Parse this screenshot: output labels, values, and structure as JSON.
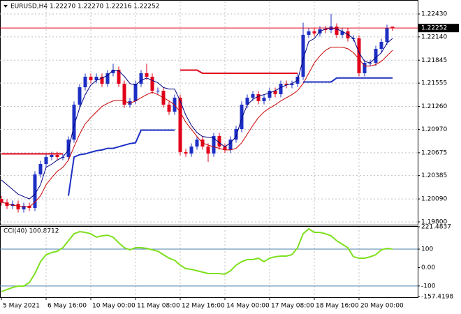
{
  "chart_data": [
    {
      "type": "candlestick",
      "title": "EURUSD,H4  1.22270 1.22270 1.22216 1.22252",
      "categories": [
        "5 May 2021",
        null,
        null,
        null,
        null,
        null,
        null,
        null,
        "6 May 16:00",
        null,
        null,
        null,
        null,
        null,
        null,
        null,
        "10 May 00:00",
        null,
        null,
        null,
        null,
        null,
        null,
        null,
        "11 May 08:00",
        null,
        null,
        null,
        null,
        null,
        null,
        null,
        "12 May 16:00",
        null,
        null,
        null,
        null,
        null,
        null,
        null,
        "14 May 00:00",
        null,
        null,
        null,
        null,
        null,
        null,
        null,
        "17 May 08:00",
        null,
        null,
        null,
        null,
        null,
        null,
        null,
        "18 May 16:00",
        null,
        null,
        null,
        null,
        null,
        null,
        null,
        "20 May 00:00",
        null,
        null,
        null,
        null,
        null,
        null
      ],
      "candles": {
        "open": [
          1.2009,
          1.20046,
          1.20002,
          1.20029,
          1.19958,
          1.20002,
          1.19976,
          1.204,
          1.20532,
          1.2062,
          1.20647,
          1.2062,
          1.2062,
          1.20841,
          1.21283,
          1.21503,
          1.21636,
          1.21592,
          1.21636,
          1.21547,
          1.2168,
          1.21724,
          1.21547,
          1.21283,
          1.21327,
          1.21547,
          1.2168,
          1.21636,
          1.21459,
          1.21459,
          1.21283,
          1.21194,
          1.21371,
          1.20682,
          1.20664,
          1.20753,
          1.20841,
          1.20753,
          1.20664,
          1.20885,
          1.20753,
          1.20709,
          1.20841,
          1.20973,
          1.21283,
          1.21371,
          1.21415,
          1.21327,
          1.21371,
          1.21459,
          1.21415,
          1.21547,
          1.2153,
          1.21547,
          1.21636,
          1.22166,
          1.2221,
          1.22183,
          1.22236,
          1.22227,
          1.22271,
          1.22166,
          1.2221,
          1.22121,
          1.22121,
          1.2168,
          1.21812,
          1.21812,
          1.21989,
          1.22077,
          1.2227
        ],
        "high": [
          1.2013,
          1.20086,
          1.20069,
          1.20069,
          1.20042,
          1.20042,
          1.2044,
          1.20572,
          1.2066,
          1.20687,
          1.20687,
          1.2066,
          1.20881,
          1.21323,
          1.21543,
          1.21676,
          1.21676,
          1.21676,
          1.21676,
          1.2172,
          1.218,
          1.21764,
          1.21587,
          1.21367,
          1.21587,
          1.2172,
          1.218,
          1.21676,
          1.21499,
          1.21499,
          1.21323,
          1.21411,
          1.21411,
          1.20722,
          1.20793,
          1.20881,
          1.20881,
          1.20793,
          1.20925,
          1.20925,
          1.20793,
          1.20881,
          1.21013,
          1.21323,
          1.21411,
          1.21455,
          1.21455,
          1.21411,
          1.21499,
          1.21499,
          1.21587,
          1.21587,
          1.21587,
          1.21676,
          1.2232,
          1.2225,
          1.2225,
          1.22276,
          1.22276,
          1.2243,
          1.22311,
          1.2225,
          1.2225,
          1.22161,
          1.22161,
          1.21852,
          1.21852,
          1.22029,
          1.22117,
          1.22294,
          1.2227
        ],
        "low": [
          1.20006,
          1.19962,
          1.19962,
          1.19918,
          1.19918,
          1.19936,
          1.19936,
          1.2036,
          1.20492,
          1.2058,
          1.2058,
          1.2058,
          1.2058,
          1.20801,
          1.21243,
          1.21463,
          1.21552,
          1.21552,
          1.21507,
          1.21507,
          1.2164,
          1.21507,
          1.21243,
          1.21243,
          1.21287,
          1.21507,
          1.21596,
          1.21419,
          1.21419,
          1.21243,
          1.21154,
          1.21154,
          1.20642,
          1.20624,
          1.20624,
          1.20713,
          1.20713,
          1.2056,
          1.20624,
          1.20713,
          1.20669,
          1.20669,
          1.20801,
          1.20933,
          1.21243,
          1.21331,
          1.21287,
          1.21287,
          1.21331,
          1.21375,
          1.21375,
          1.2149,
          1.2149,
          1.21507,
          1.21596,
          1.22126,
          1.22143,
          1.22143,
          1.22187,
          1.22187,
          1.22126,
          1.22126,
          1.22081,
          1.22081,
          1.2164,
          1.2164,
          1.21772,
          1.21772,
          1.21949,
          1.22037,
          1.22216
        ],
        "close": [
          1.20046,
          1.20002,
          1.20029,
          1.19958,
          1.20002,
          1.19976,
          1.204,
          1.20532,
          1.2062,
          1.20647,
          1.2062,
          1.2062,
          1.20841,
          1.21283,
          1.21503,
          1.21636,
          1.21592,
          1.21636,
          1.21547,
          1.2168,
          1.21724,
          1.21547,
          1.21283,
          1.21327,
          1.21547,
          1.2168,
          1.21636,
          1.21459,
          1.21459,
          1.21283,
          1.21194,
          1.21371,
          1.20682,
          1.20664,
          1.20753,
          1.20841,
          1.20753,
          1.20664,
          1.20885,
          1.20753,
          1.20709,
          1.20841,
          1.20973,
          1.21283,
          1.21371,
          1.21415,
          1.21327,
          1.21371,
          1.21459,
          1.21415,
          1.21547,
          1.2153,
          1.21547,
          1.21636,
          1.22166,
          1.2221,
          1.22183,
          1.22236,
          1.22227,
          1.22271,
          1.22166,
          1.2221,
          1.22121,
          1.22121,
          1.2168,
          1.21812,
          1.21812,
          1.21989,
          1.22077,
          1.22254,
          1.22252
        ]
      },
      "up_color": "#1c2fc4",
      "down_color": "#e0001a",
      "series": [
        {
          "color": "#000080",
          "width": 1,
          "values": [
            1.2033,
            1.2027,
            1.2021,
            1.2015,
            1.2012,
            1.2009,
            1.2015,
            1.2027,
            1.2049,
            1.2053,
            1.2058,
            1.2062,
            1.2071,
            1.2102,
            1.2124,
            1.2141,
            1.2153,
            1.2159,
            1.2162,
            1.2165,
            1.2172,
            1.2171,
            1.2164,
            1.2155,
            1.2153,
            1.2159,
            1.2162,
            1.2159,
            1.2156,
            1.215,
            1.2148,
            1.2148,
            1.2133,
            1.2115,
            1.2102,
            1.2093,
            1.2088,
            1.2087,
            1.2086,
            1.208,
            1.2075,
            1.208,
            1.2088,
            1.2111,
            1.2128,
            1.2135,
            1.2139,
            1.2141,
            1.2143,
            1.2146,
            1.215,
            1.2153,
            1.2155,
            1.2159,
            1.2186,
            1.2208,
            1.2212,
            1.2221,
            1.2224,
            1.2225,
            1.2224,
            1.2221,
            1.2217,
            1.2212,
            1.2194,
            1.2183,
            1.2181,
            1.2188,
            1.2194,
            1.2206,
            1.2212
          ]
        },
        {
          "color": "#cc0000",
          "width": 1,
          "values": [
            1.2005,
            1.2003,
            1.2001,
            1.2,
            1.1999,
            1.1999,
            1.2005,
            1.2013,
            1.2027,
            1.2036,
            1.2044,
            1.2049,
            1.2058,
            1.2075,
            1.2091,
            1.2104,
            1.2112,
            1.2119,
            1.2126,
            1.213,
            1.2133,
            1.2134,
            1.2133,
            1.213,
            1.2133,
            1.2137,
            1.2141,
            1.2144,
            1.2141,
            1.2137,
            1.2133,
            1.2128,
            1.2119,
            1.2106,
            1.2097,
            1.2088,
            1.208,
            1.2077,
            1.2075,
            1.2073,
            1.2071,
            1.2071,
            1.2073,
            1.208,
            1.2091,
            1.2102,
            1.2112,
            1.2119,
            1.2124,
            1.2128,
            1.2133,
            1.2137,
            1.2141,
            1.2146,
            1.2155,
            1.2168,
            1.2181,
            1.219,
            1.2197,
            1.2201,
            1.2201,
            1.2201,
            1.2199,
            1.2194,
            1.2186,
            1.2177,
            1.2177,
            1.2179,
            1.2183,
            1.219,
            1.2197
          ]
        },
        {
          "color": "#1c2fc4",
          "width": 2,
          "values": [
            null,
            null,
            null,
            null,
            null,
            null,
            null,
            null,
            null,
            null,
            null,
            null,
            1.2013,
            1.2062,
            1.2065,
            1.2066,
            1.2068,
            1.207,
            1.2071,
            1.2073,
            1.2073,
            1.2075,
            1.2077,
            1.2079,
            1.208,
            1.2096,
            1.2096,
            1.2096,
            1.2096,
            1.2096,
            1.2096,
            1.2096,
            null,
            null,
            null,
            null,
            null,
            null,
            null,
            null,
            null,
            null,
            null,
            null,
            null,
            null,
            null,
            null,
            null,
            null,
            null,
            null,
            null,
            null,
            1.2157,
            1.2157,
            1.2157,
            1.2157,
            1.2157,
            1.2157,
            1.2162,
            1.2162,
            1.2162,
            1.2162,
            1.2162,
            1.2162,
            1.2162,
            1.2162,
            1.2162,
            1.2162,
            1.2162
          ]
        },
        {
          "color": "#e0001a",
          "width": 2,
          "values": [
            1.2066,
            1.2066,
            1.2066,
            1.2066,
            1.2066,
            1.2066,
            1.2066,
            1.2066,
            1.2066,
            1.2066,
            1.2066,
            1.2066,
            null,
            null,
            null,
            null,
            null,
            null,
            null,
            null,
            null,
            null,
            null,
            null,
            null,
            null,
            null,
            null,
            null,
            null,
            null,
            null,
            1.2172,
            1.2172,
            1.2172,
            1.2172,
            1.2168,
            1.2168,
            1.2168,
            1.2168,
            1.2168,
            1.2168,
            1.2168,
            1.2168,
            1.2168,
            1.2168,
            1.2168,
            1.2168,
            1.2168,
            1.2168,
            1.2168,
            1.2168,
            1.2168,
            1.2168,
            null,
            null,
            null,
            null,
            null,
            null,
            null,
            null,
            null,
            null,
            null,
            null,
            null,
            null,
            null,
            null,
            null
          ]
        }
      ],
      "current_price": 1.22252,
      "current_color": "#e0001a",
      "ylim": [
        1.19782,
        1.22589
      ],
      "yticks": [
        {
          "value": 1.2243,
          "label": "1.22430"
        },
        {
          "value": 1.2214,
          "label": "1.22140"
        },
        1.21845,
        1.21555,
        {
          "value": 1.2126,
          "label": "1.21260"
        },
        {
          "value": 1.2097,
          "label": "1.20970"
        },
        1.20675,
        1.20385,
        {
          "value": 1.2009,
          "label": "1.20090"
        },
        {
          "value": 1.198,
          "label": "1.19800"
        }
      ],
      "grid": true
    },
    {
      "type": "line",
      "title": "CCI(40) 100.8712",
      "series": [
        {
          "color": "#7ee01e",
          "width": 2,
          "values": [
            -130.9,
            -119.5,
            -108.2,
            -100.6,
            -100.6,
            -81.6,
            -32.4,
            32.0,
            69.9,
            81.3,
            88.8,
            107.8,
            145.7,
            183.6,
            194.9,
            191.2,
            183.6,
            164.7,
            172.2,
            176.0,
            164.7,
            134.3,
            107.8,
            96.4,
            107.8,
            107.8,
            104.0,
            96.4,
            88.8,
            69.9,
            51.0,
            39.6,
            13.1,
            -5.9,
            -9.7,
            -17.2,
            -24.8,
            -32.4,
            -32.4,
            -32.4,
            -36.2,
            -17.2,
            13.1,
            32.0,
            43.4,
            43.4,
            51.0,
            32.0,
            51.0,
            58.6,
            62.3,
            62.3,
            69.9,
            107.8,
            183.6,
            210.1,
            191.2,
            191.2,
            183.6,
            172.2,
            145.7,
            126.7,
            107.8,
            58.6,
            51.0,
            51.0,
            58.6,
            69.9,
            96.4,
            104.0,
            100.8712
          ]
        }
      ],
      "levels": [
        100,
        -100
      ],
      "level_color": "#4a7fa8",
      "ylim": [
        -157.4198,
        221.4837
      ],
      "yticks": [
        221.4837,
        100,
        {
          "value": 0,
          "label": "0.00"
        },
        -100,
        -157.4198
      ],
      "grid": true
    }
  ]
}
